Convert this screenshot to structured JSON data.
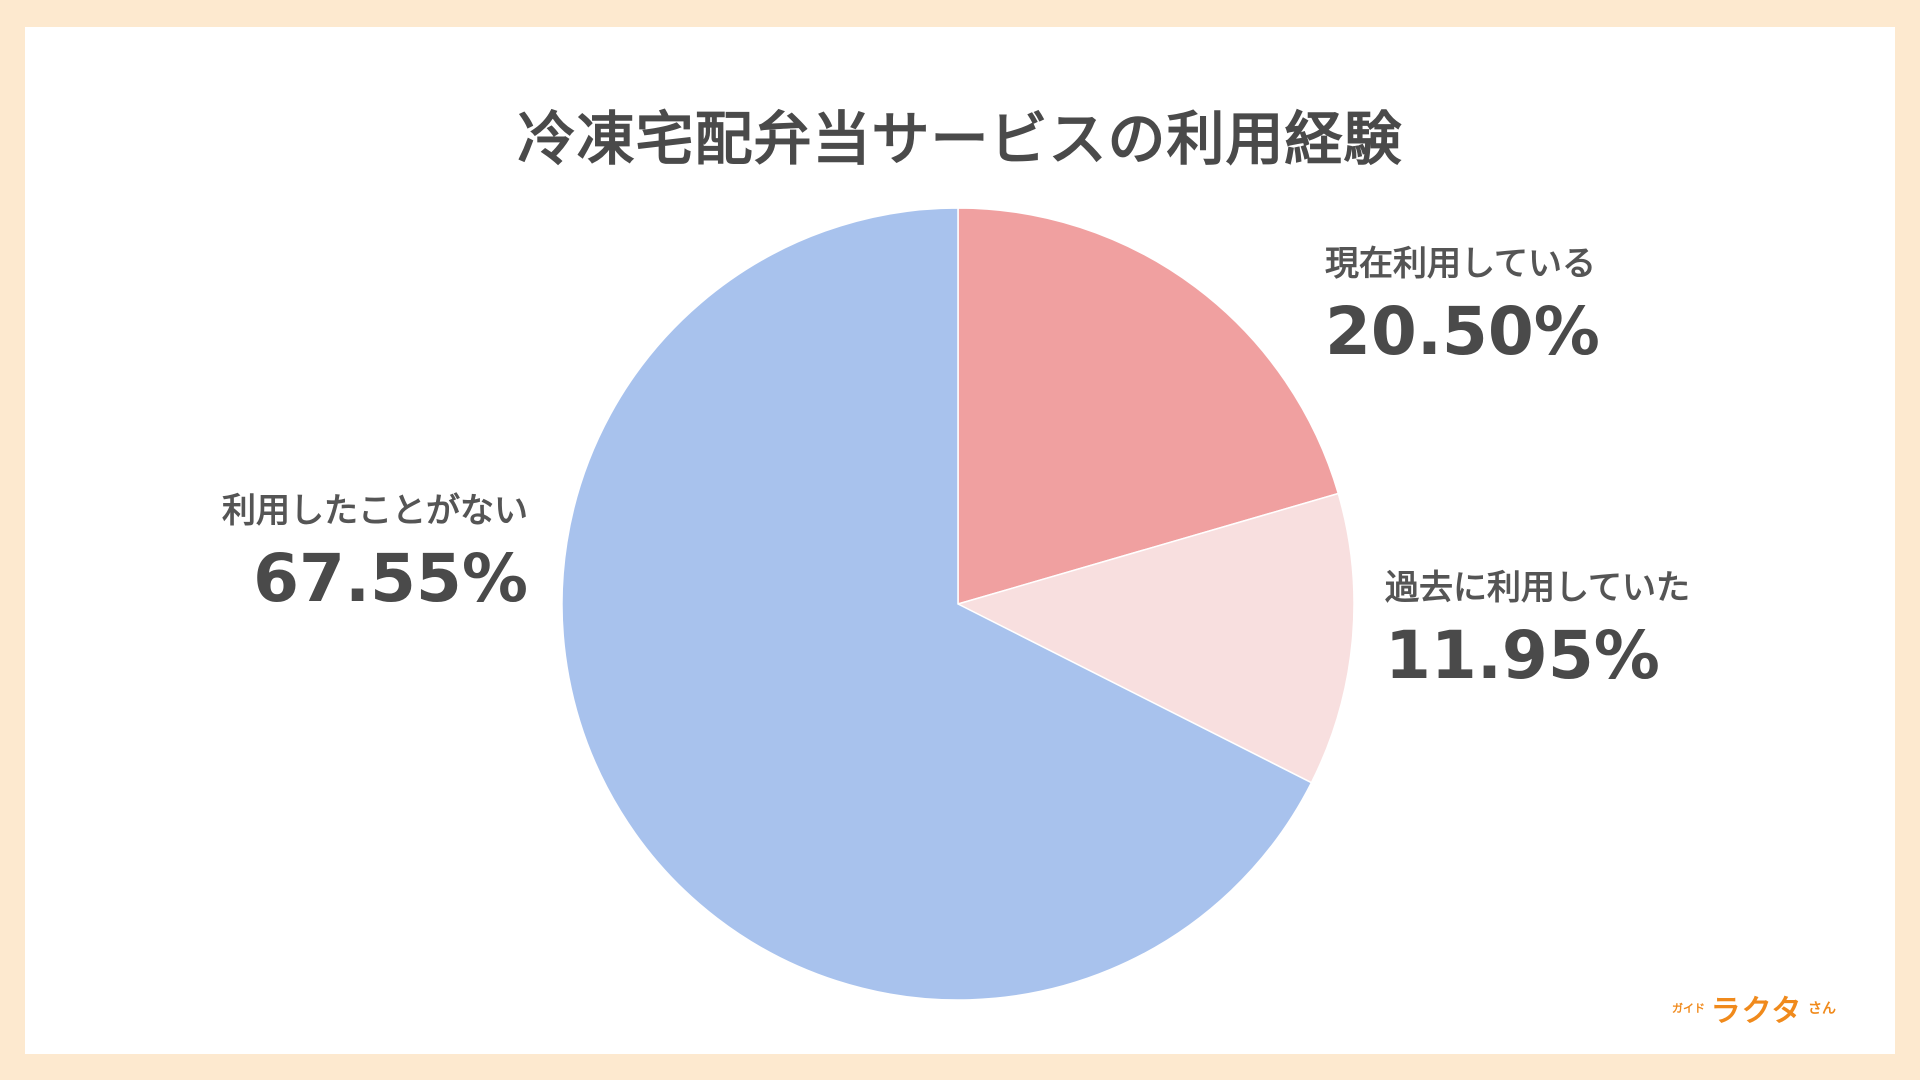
{
  "title": "冷凍宅配弁当サービスの利用経験",
  "logo": {
    "prefix": "ガイド",
    "main": "ラクタ",
    "suffix": "さん"
  },
  "colors": {
    "background": "#fde9cf",
    "current": "#f0a0a0",
    "past": "#f8dfdf",
    "never": "#a8c2ed",
    "text": "#4a4a4a",
    "logo": "#f08a1c"
  },
  "chart_data": {
    "type": "pie",
    "title": "冷凍宅配弁当サービスの利用経験",
    "slices": [
      {
        "label": "現在利用している",
        "value": 20.5,
        "display": "20.50%",
        "color": "#f0a0a0"
      },
      {
        "label": "過去に利用していた",
        "value": 11.95,
        "display": "11.95%",
        "color": "#f8dfdf"
      },
      {
        "label": "利用したことがない",
        "value": 67.55,
        "display": "67.55%",
        "color": "#a8c2ed"
      }
    ],
    "start": "12 o'clock",
    "direction": "clockwise"
  }
}
